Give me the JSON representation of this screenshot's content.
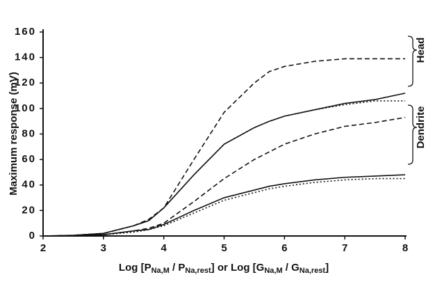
{
  "chart_data": {
    "type": "line",
    "y_label": "Maximum response (mV)",
    "x_label": [
      "Log [P",
      "Na,M",
      " / P",
      "Na,rest",
      "] or Log [G",
      "Na,M",
      " / G",
      "Na,rest",
      "]"
    ],
    "annotations": [
      "Head",
      "Dendrite"
    ],
    "x": [
      2,
      2.5,
      3,
      3.5,
      3.75,
      4,
      4.5,
      5,
      5.5,
      5.75,
      6,
      6.5,
      7,
      7.5,
      8
    ],
    "series": [
      {
        "color": "#111",
        "dash": "dashed",
        "values": [
          0,
          0.5,
          2,
          8,
          13,
          22,
          60,
          97,
          120,
          129,
          133,
          137,
          139,
          139,
          139
        ]
      },
      {
        "color": "#111",
        "dash": "solid",
        "values": [
          0,
          0.5,
          2,
          8,
          12,
          22,
          48,
          72,
          85,
          90,
          94,
          99,
          104,
          107,
          112
        ]
      },
      {
        "color": "#111",
        "dash": "dotted",
        "values": [
          0,
          0.5,
          2,
          8,
          12,
          22,
          48,
          72,
          85,
          90,
          94,
          99,
          103,
          106,
          106
        ]
      },
      {
        "color": "#111",
        "dash": "dashed",
        "values": [
          0,
          0.3,
          1,
          4,
          6,
          10,
          27,
          45,
          60,
          66,
          72,
          80,
          86,
          89,
          93
        ]
      },
      {
        "color": "#111",
        "dash": "solid",
        "values": [
          0,
          0.3,
          1,
          4,
          5,
          9,
          20,
          30,
          36,
          39,
          41,
          44,
          46,
          47,
          48
        ]
      },
      {
        "color": "#111",
        "dash": "dotted",
        "values": [
          0,
          0.3,
          1,
          3,
          5,
          8,
          18,
          28,
          34,
          37,
          39,
          42,
          44,
          45,
          45
        ]
      }
    ],
    "xlim": [
      2,
      8
    ],
    "xticks": [
      2,
      3,
      4,
      5,
      6,
      7,
      8
    ],
    "ylim": [
      0,
      160
    ],
    "yticks": [
      0,
      20,
      40,
      60,
      80,
      100,
      120,
      140,
      160
    ]
  }
}
